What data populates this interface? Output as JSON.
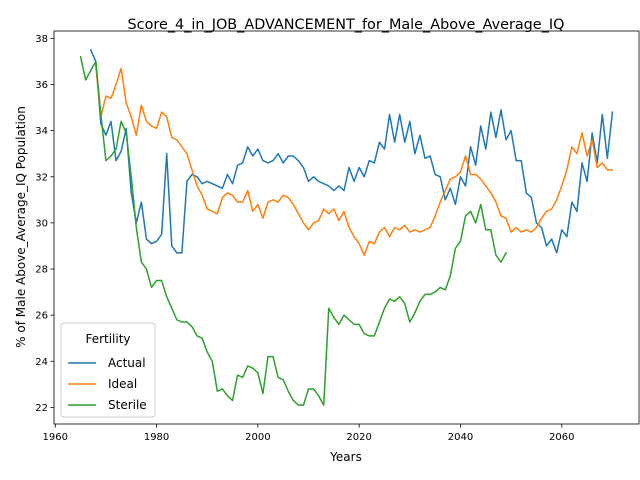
{
  "chart_data": {
    "type": "line",
    "title": "Score_4_in_JOB_ADVANCEMENT_for_Male_Above_Average_IQ",
    "xlabel": "Years",
    "ylabel": "% of Male Above_Average_IQ Population",
    "xlim": [
      1959.75,
      2075.25
    ],
    "ylim": [
      21.28,
      38.32
    ],
    "xticks": [
      1960,
      1980,
      2000,
      2020,
      2040,
      2060
    ],
    "yticks": [
      22,
      24,
      26,
      28,
      30,
      32,
      34,
      36,
      38
    ],
    "grid": false,
    "legend": {
      "title": "Fertility",
      "placement": "lower-left"
    },
    "series": [
      {
        "name": "Actual",
        "color": "#1f77b4",
        "start_year": 1967,
        "values": [
          37.5,
          37.0,
          34.3,
          33.8,
          34.4,
          32.7,
          33.1,
          34.1,
          31.3,
          30.0,
          30.9,
          29.3,
          29.1,
          29.2,
          29.5,
          33.0,
          29.0,
          28.7,
          28.7,
          31.8,
          32.1,
          32.0,
          31.7,
          31.8,
          31.7,
          31.6,
          31.5,
          32.1,
          31.7,
          32.5,
          32.6,
          33.3,
          32.9,
          33.2,
          32.7,
          32.6,
          32.7,
          33.0,
          32.6,
          32.9,
          32.9,
          32.7,
          32.4,
          31.8,
          32.0,
          31.8,
          31.7,
          31.6,
          31.4,
          31.6,
          31.4,
          32.4,
          31.8,
          32.4,
          32.0,
          32.7,
          32.6,
          33.5,
          33.2,
          34.7,
          33.5,
          34.7,
          33.5,
          34.4,
          33.0,
          33.8,
          32.8,
          32.9,
          32.1,
          32.0,
          31.0,
          31.5,
          30.8,
          32.0,
          31.6,
          33.3,
          32.5,
          34.2,
          33.2,
          34.8,
          33.7,
          34.9,
          33.6,
          34.0,
          32.7,
          32.7,
          31.3,
          31.1,
          30.0,
          29.8,
          29.0,
          29.3,
          28.7,
          29.7,
          29.4,
          30.9,
          30.5,
          32.6,
          31.8,
          33.9,
          32.6,
          34.7,
          32.8,
          34.8
        ]
      },
      {
        "name": "Ideal",
        "color": "#ff7f0e",
        "start_year": 1968,
        "values": [
          36.8,
          34.6,
          35.5,
          35.4,
          36.0,
          36.7,
          35.2,
          34.6,
          33.8,
          35.1,
          34.4,
          34.2,
          34.1,
          34.8,
          34.6,
          33.7,
          33.6,
          33.3,
          33.0,
          32.3,
          31.6,
          31.2,
          30.6,
          30.5,
          30.4,
          31.1,
          31.3,
          31.2,
          30.9,
          30.9,
          31.4,
          30.5,
          30.8,
          30.2,
          30.9,
          31.0,
          30.9,
          31.2,
          31.1,
          30.8,
          30.4,
          30.0,
          29.7,
          30.0,
          30.1,
          30.6,
          30.4,
          30.6,
          30.1,
          30.5,
          29.8,
          29.4,
          29.1,
          28.6,
          29.2,
          29.1,
          29.6,
          29.8,
          29.4,
          29.8,
          29.7,
          29.9,
          29.6,
          29.7,
          29.6,
          29.7,
          29.8,
          30.3,
          30.9,
          31.4,
          31.9,
          32.0,
          32.2,
          32.9,
          32.1,
          32.1,
          31.9,
          31.6,
          31.3,
          30.9,
          30.3,
          30.2,
          29.6,
          29.8,
          29.6,
          29.7,
          29.6,
          29.8,
          30.2,
          30.5,
          30.6,
          31.0,
          31.6,
          32.3,
          33.3,
          33.0,
          33.9,
          32.9,
          33.6,
          32.4,
          32.6,
          32.3,
          32.3
        ]
      },
      {
        "name": "Sterile",
        "color": "#2ca02c",
        "start_year": 1965,
        "values": [
          37.2,
          36.2,
          36.6,
          37.0,
          34.7,
          32.7,
          32.9,
          33.2,
          34.4,
          33.9,
          32.0,
          29.8,
          28.3,
          28.0,
          27.2,
          27.5,
          27.5,
          26.8,
          26.3,
          25.8,
          25.7,
          25.7,
          25.5,
          25.1,
          25.0,
          24.4,
          24.0,
          22.7,
          22.8,
          22.5,
          22.3,
          23.4,
          23.3,
          23.8,
          23.7,
          23.5,
          22.6,
          24.2,
          24.2,
          23.3,
          23.2,
          22.7,
          22.3,
          22.1,
          22.1,
          22.8,
          22.8,
          22.5,
          22.1,
          26.3,
          25.9,
          25.6,
          26.0,
          25.8,
          25.6,
          25.6,
          25.2,
          25.1,
          25.1,
          25.7,
          26.3,
          26.7,
          26.6,
          26.8,
          26.5,
          25.7,
          26.1,
          26.6,
          26.9,
          26.9,
          27.0,
          27.2,
          27.1,
          27.7,
          28.9,
          29.2,
          30.3,
          30.5,
          30.0,
          30.8,
          29.7,
          29.7,
          28.6,
          28.3,
          28.7
        ]
      }
    ]
  }
}
